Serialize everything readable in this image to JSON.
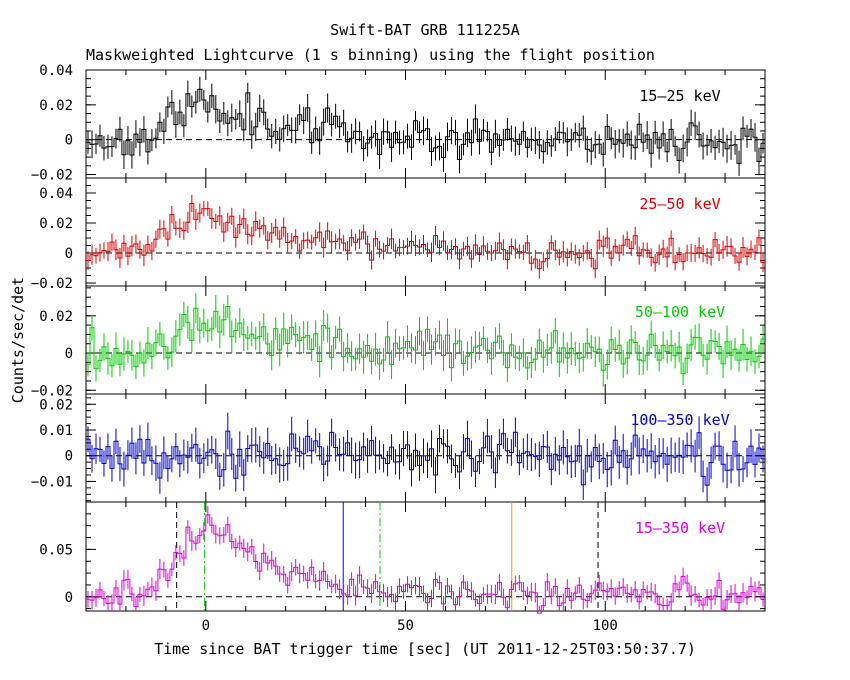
{
  "chart_data": {
    "type": "line",
    "title": "Swift-BAT GRB 111225A",
    "subtitle": "Maskweighted Lightcurve (1 s binning) using the flight position",
    "xlabel": "Time since BAT trigger time [sec] (UT 2011-12-25T03:50:37.7)",
    "ylabel": "Counts/sec/det",
    "xlim": [
      -30,
      140
    ],
    "x_ticks": [
      0,
      50,
      100
    ],
    "x_ticklabels": [
      "0",
      "50",
      "100"
    ],
    "panels": [
      {
        "name": "15-25 keV",
        "label": "15–25 keV",
        "color": "#000000",
        "ylim": [
          -0.022,
          0.04
        ],
        "y_ticks": [
          -0.02,
          0,
          0.02,
          0.04
        ],
        "y_ticklabels": [
          "−0.02",
          "0",
          "0.02",
          "0.04"
        ],
        "noise": 0.0055,
        "err": 0.007,
        "peak": 0.021,
        "seed": 11
      },
      {
        "name": "25-50 keV",
        "label": "25–50 keV",
        "color": "#dd0000",
        "ylim": [
          -0.022,
          0.05
        ],
        "y_ticks": [
          -0.02,
          0,
          0.02,
          0.04
        ],
        "y_ticklabels": [
          "−0.02",
          "0",
          "0.02",
          "0.04"
        ],
        "noise": 0.0045,
        "err": 0.006,
        "peak": 0.027,
        "seed": 23
      },
      {
        "name": "50-100 keV",
        "label": "50–100 keV",
        "color": "#00cc00",
        "ylim": [
          -0.022,
          0.036
        ],
        "y_ticks": [
          -0.02,
          0,
          0.02
        ],
        "y_ticklabels": [
          "−0.02",
          "0",
          "0.02"
        ],
        "noise": 0.0055,
        "err": 0.0075,
        "peak": 0.019,
        "seed": 37
      },
      {
        "name": "100-350 keV",
        "label": "100–350 keV",
        "color": "#0000cc",
        "ylim": [
          -0.018,
          0.024
        ],
        "y_ticks": [
          -0.01,
          0,
          0.01,
          0.02
        ],
        "y_ticklabels": [
          "−0.01",
          "0",
          "0.01",
          "0.02"
        ],
        "noise": 0.0045,
        "err": 0.006,
        "peak": 0.001,
        "seed": 53
      },
      {
        "name": "15-350 keV",
        "label": "15–350 keV",
        "color": "#dd00dd",
        "ylim": [
          -0.015,
          0.1
        ],
        "y_ticks": [
          0,
          0.05
        ],
        "y_ticklabels": [
          "0",
          "0.05"
        ],
        "noise": 0.008,
        "err": 0.009,
        "peak": 0.072,
        "seed": 71
      }
    ],
    "markers": [
      {
        "x": -7.3,
        "color": "#000000",
        "style": "dashed"
      },
      {
        "x": -0.3,
        "color": "#00cc00",
        "style": "dashdot"
      },
      {
        "x": 34.4,
        "color": "#0000ff",
        "style": "solid"
      },
      {
        "x": 43.6,
        "color": "#00cc00",
        "style": "dashdot"
      },
      {
        "x": 76.6,
        "color": "#ff9900",
        "style": "solid"
      },
      {
        "x": 98.2,
        "color": "#000000",
        "style": "dashed"
      }
    ]
  }
}
